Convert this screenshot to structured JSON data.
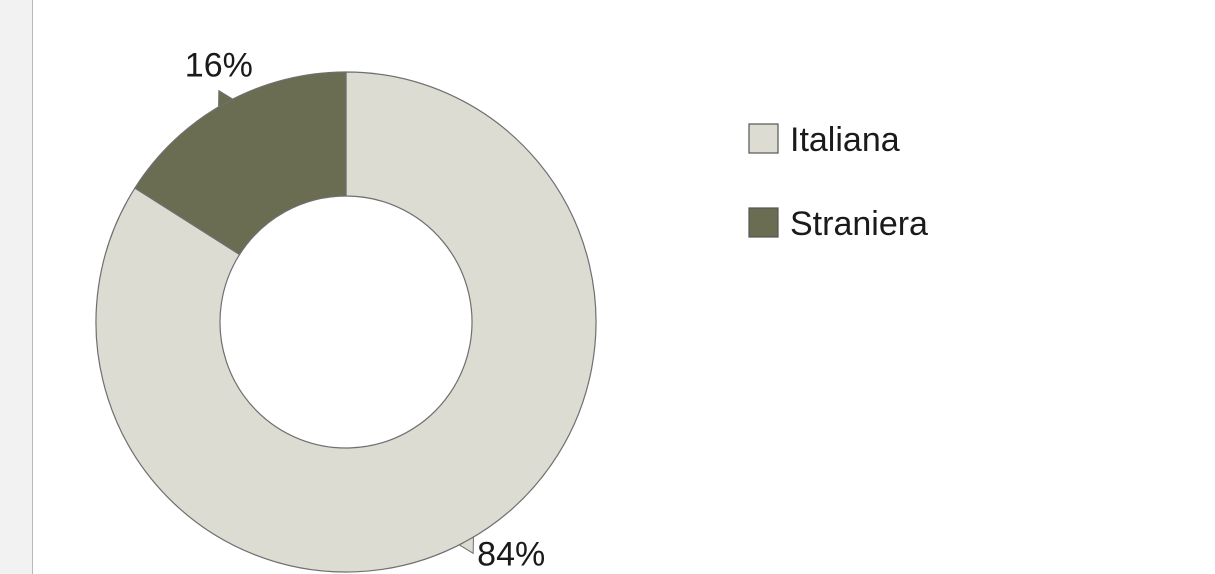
{
  "chart_data": {
    "type": "pie",
    "variant": "donut",
    "title": "",
    "categories": [
      "Italiana",
      "Straniera"
    ],
    "values": [
      84,
      16
    ],
    "unit": "%",
    "data_labels": [
      "84%",
      "16%"
    ],
    "colors": [
      "#dcdcd2",
      "#6b6d52"
    ],
    "legend": {
      "placement": "right",
      "entries": [
        "Italiana",
        "Straniera"
      ]
    }
  }
}
